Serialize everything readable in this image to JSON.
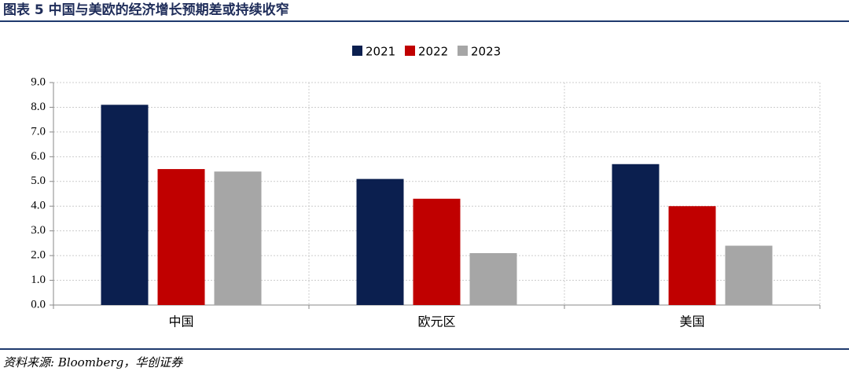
{
  "chart_data": {
    "type": "bar",
    "title": "图表 5 中国与美欧的经济增长预期差或持续收窄",
    "source": "资料来源: Bloomberg，华创证券",
    "categories": [
      "中国",
      "欧元区",
      "美国"
    ],
    "series": [
      {
        "name": "2021",
        "color": "#0b1f4f",
        "values": [
          8.1,
          5.1,
          5.7
        ]
      },
      {
        "name": "2022",
        "color": "#c00000",
        "values": [
          5.5,
          4.3,
          4.0
        ]
      },
      {
        "name": "2023",
        "color": "#a6a6a6",
        "values": [
          5.4,
          2.1,
          2.4
        ]
      }
    ],
    "ylim": [
      0,
      9
    ],
    "yticks": [
      {
        "value": 0,
        "label": "0.0"
      },
      {
        "value": 1,
        "label": "1.0"
      },
      {
        "value": 2,
        "label": "2.0"
      },
      {
        "value": 3,
        "label": "3.0"
      },
      {
        "value": 4,
        "label": "4.0"
      },
      {
        "value": 5,
        "label": "5.0"
      },
      {
        "value": 6,
        "label": "6.0"
      },
      {
        "value": 7,
        "label": "7.0"
      },
      {
        "value": 8,
        "label": "8.0"
      },
      {
        "value": 9,
        "label": "9.0"
      }
    ],
    "grid": true,
    "legend": "top"
  }
}
